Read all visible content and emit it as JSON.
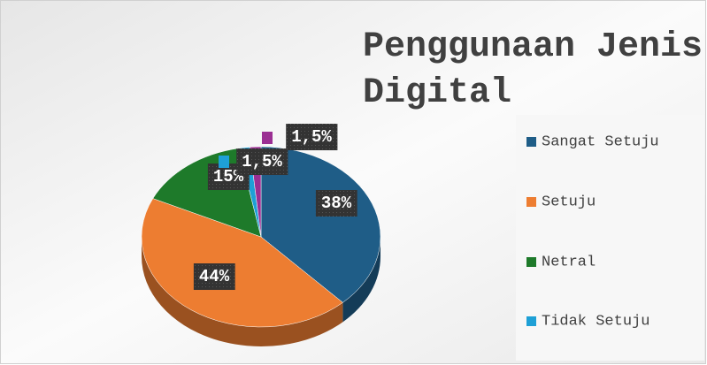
{
  "chart_data": {
    "type": "pie",
    "title": "Penggunaan Jenis Uang Digital",
    "categories": [
      "Sangat Setuju",
      "Setuju",
      "Netral",
      "Tidak Setuju",
      null
    ],
    "values": [
      38,
      44,
      15,
      1.5,
      1.5
    ],
    "value_labels": [
      "38%",
      "44%",
      "15%",
      "1,5%",
      "1,5%"
    ],
    "colors": [
      "#1f5d87",
      "#ed7d31",
      "#1e7a2a",
      "#1ea0d6",
      "#9b2f93"
    ],
    "legend": "right"
  }
}
